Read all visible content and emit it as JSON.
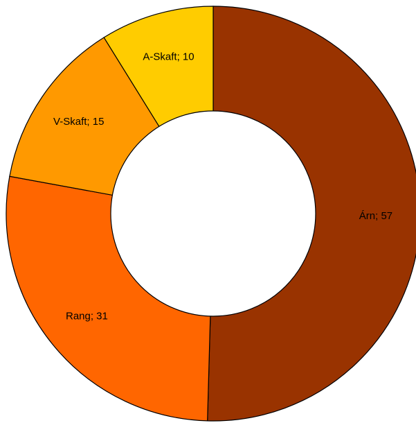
{
  "chart_data": {
    "type": "pie",
    "variant": "donut",
    "start": "top, clockwise",
    "slices": [
      {
        "label": "Árn",
        "value": 57,
        "color": "#993300"
      },
      {
        "label": "Rang",
        "value": 31,
        "color": "#FF6600"
      },
      {
        "label": "V-Skaft",
        "value": 15,
        "color": "#FF9900"
      },
      {
        "label": "A-Skaft",
        "value": 10,
        "color": "#FFCC00"
      }
    ],
    "label_separator": "; ",
    "legend": "none",
    "title": ""
  }
}
